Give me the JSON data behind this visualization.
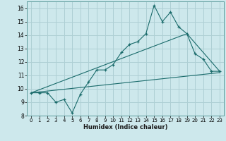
{
  "xlabel": "Humidex (Indice chaleur)",
  "bg_color": "#cde8ec",
  "grid_color": "#aecfd4",
  "line_color": "#1a6b6b",
  "xlim": [
    -0.5,
    23.5
  ],
  "ylim": [
    8,
    16.5
  ],
  "xticks": [
    0,
    1,
    2,
    3,
    4,
    5,
    6,
    7,
    8,
    9,
    10,
    11,
    12,
    13,
    14,
    15,
    16,
    17,
    18,
    19,
    20,
    21,
    22,
    23
  ],
  "yticks": [
    8,
    9,
    10,
    11,
    12,
    13,
    14,
    15,
    16
  ],
  "main_x": [
    0,
    1,
    2,
    3,
    4,
    5,
    6,
    7,
    8,
    9,
    10,
    11,
    12,
    13,
    14,
    15,
    16,
    17,
    18,
    19,
    20,
    21,
    22,
    23
  ],
  "main_y": [
    9.7,
    9.7,
    9.7,
    9.0,
    9.2,
    8.2,
    9.6,
    10.5,
    11.4,
    11.4,
    11.8,
    12.7,
    13.3,
    13.5,
    14.1,
    16.2,
    15.0,
    15.7,
    14.6,
    14.1,
    12.6,
    12.2,
    11.3,
    11.3
  ],
  "line2_x": [
    0,
    23
  ],
  "line2_y": [
    9.7,
    11.2
  ],
  "line3_x": [
    0,
    19,
    23
  ],
  "line3_y": [
    9.7,
    14.1,
    11.3
  ]
}
